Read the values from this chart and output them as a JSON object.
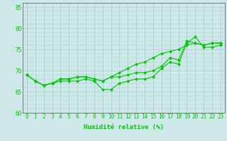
{
  "xlabel": "Humidité relative (%)",
  "background_color": "#cce8e8",
  "grid_color": "#aacccc",
  "line_color": "#00cc00",
  "xlim": [
    -0.5,
    23.5
  ],
  "ylim": [
    60,
    86
  ],
  "yticks": [
    60,
    65,
    70,
    75,
    80,
    85
  ],
  "xticks": [
    0,
    1,
    2,
    3,
    4,
    5,
    6,
    7,
    8,
    9,
    10,
    11,
    12,
    13,
    14,
    15,
    16,
    17,
    18,
    19,
    20,
    21,
    22,
    23
  ],
  "line1": [
    69.0,
    67.5,
    66.5,
    67.0,
    67.5,
    67.5,
    67.5,
    68.0,
    67.5,
    65.5,
    65.5,
    67.0,
    67.5,
    68.0,
    68.0,
    68.5,
    70.5,
    72.0,
    71.5,
    76.5,
    78.0,
    75.5,
    75.5,
    76.0
  ],
  "line2": [
    69.0,
    67.5,
    66.5,
    67.0,
    68.0,
    68.0,
    68.5,
    68.5,
    68.0,
    67.5,
    68.5,
    69.5,
    70.5,
    71.5,
    72.0,
    73.0,
    74.0,
    74.5,
    75.0,
    76.0,
    76.5,
    76.0,
    76.5,
    76.5
  ],
  "line3": [
    69.0,
    67.5,
    66.5,
    67.0,
    68.0,
    68.0,
    68.5,
    68.5,
    68.0,
    67.5,
    68.5,
    68.5,
    69.0,
    69.5,
    69.5,
    70.0,
    71.0,
    73.0,
    72.5,
    77.0,
    76.5,
    76.0,
    76.5,
    76.5
  ],
  "marker_size": 2.5,
  "line_width": 0.8,
  "tick_fontsize": 5.5,
  "xlabel_fontsize": 6.5
}
